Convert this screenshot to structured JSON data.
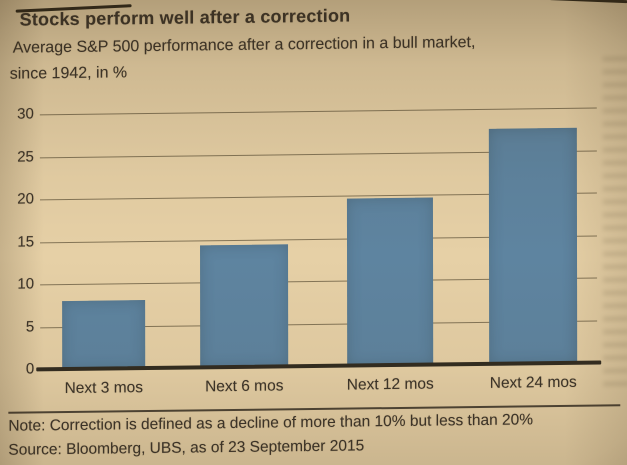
{
  "page": {
    "title": "Stocks perform well after a correction",
    "subtitle_line1": "Average S&P 500 performance after a correction in a bull market,",
    "subtitle_line2": "since 1942, in %",
    "note": "Note: Correction is defined as a decline of more than 10% but less than 20%",
    "source": "Source: Bloomberg, UBS, as of 23 September 2015"
  },
  "chart_data": {
    "type": "bar",
    "title": "Stocks perform well after a correction",
    "subtitle": "Average S&P 500 performance after a correction in a bull market, since 1942, in %",
    "categories": [
      "Next 3 mos",
      "Next 6 mos",
      "Next 12 mos",
      "Next 24 mos"
    ],
    "values": [
      8,
      14.4,
      19.6,
      27.7
    ],
    "unit": "%",
    "xlabel": "",
    "ylabel": "in %",
    "ylim": [
      0,
      30
    ],
    "yticks": [
      0,
      5,
      10,
      15,
      20,
      25,
      30
    ],
    "grid": true,
    "legend": "none",
    "note": "Correction is defined as a decline of more than 10% but less than 20%",
    "source": "Bloomberg, UBS, as of 23 September 2015"
  },
  "colors": {
    "paper": "#e6d0a6",
    "ink": "#3c342a",
    "bar": "#5e84a0",
    "gridline": "#7e7052",
    "axis_line": "#322c21"
  }
}
